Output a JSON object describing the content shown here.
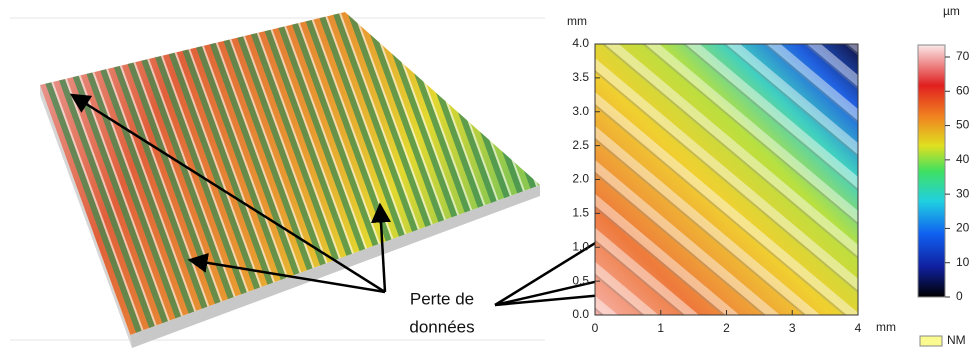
{
  "left_panel": {
    "annotation": {
      "line1": "Perte de",
      "line2": "données"
    }
  },
  "map": {
    "y_unit": "mm",
    "x_unit": "mm",
    "xticks": [
      "0",
      "1",
      "2",
      "3",
      "4"
    ],
    "yticks": [
      "0.0",
      "0.5",
      "1.0",
      "1.5",
      "2.0",
      "2.5",
      "3.0",
      "3.5",
      "4.0"
    ]
  },
  "colorbar": {
    "unit": "µm",
    "ticks": [
      "0",
      "10",
      "20",
      "30",
      "40",
      "50",
      "60",
      "70"
    ],
    "missing_label": "NM"
  }
}
